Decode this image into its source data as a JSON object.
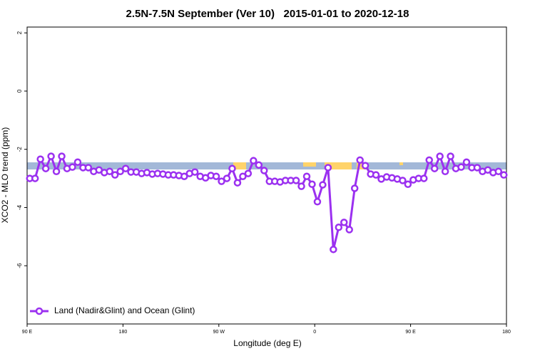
{
  "chart_data": {
    "type": "line",
    "title": "2.5N-7.5N September (Ver 10)   2015-01-01 to 2020-12-18",
    "x_label": "Longitude (deg E)",
    "y_label": "XCO2 - MLO trend (ppm)",
    "x": [
      92.5,
      97.5,
      102.5,
      107.5,
      112.5,
      117.5,
      122.5,
      127.5,
      132.5,
      137.5,
      142.5,
      147.5,
      152.5,
      157.5,
      162.5,
      167.5,
      172.5,
      177.5,
      182.5,
      187.5,
      192.5,
      197.5,
      202.5,
      207.5,
      212.5,
      217.5,
      222.5,
      227.5,
      232.5,
      237.5,
      242.5,
      247.5,
      252.5,
      257.5,
      262.5,
      267.5,
      272.5,
      277.5,
      282.5,
      287.5,
      292.5,
      297.5,
      302.5,
      307.5,
      312.5,
      317.5,
      322.5,
      327.5,
      332.5,
      337.5,
      342.5,
      347.5,
      352.5,
      357.5,
      362.5,
      367.5,
      372.5,
      377.5,
      382.5,
      387.5,
      392.5,
      397.5,
      402.5,
      407.5,
      412.5,
      417.5,
      422.5,
      427.5,
      432.5,
      437.5,
      442.5,
      447.5,
      452.5,
      457.5,
      462.5,
      467.5,
      472.5,
      477.5,
      482.5,
      487.5,
      492.5,
      497.5,
      502.5,
      507.5,
      512.5,
      517.5,
      522.5,
      527.5,
      532.5,
      537.5
    ],
    "series": [
      {
        "name": "Land (Nadir&Glint) and Ocean (Glint)",
        "color": "#9b30f0",
        "values": [
          -3.0,
          -3.0,
          -2.34,
          -2.66,
          -2.24,
          -2.76,
          -2.24,
          -2.66,
          -2.61,
          -2.44,
          -2.63,
          -2.63,
          -2.76,
          -2.71,
          -2.8,
          -2.76,
          -2.88,
          -2.76,
          -2.66,
          -2.78,
          -2.78,
          -2.83,
          -2.8,
          -2.85,
          -2.83,
          -2.85,
          -2.88,
          -2.88,
          -2.9,
          -2.93,
          -2.83,
          -2.78,
          -2.93,
          -2.98,
          -2.9,
          -2.93,
          -3.1,
          -3.0,
          -2.66,
          -3.15,
          -2.93,
          -2.83,
          -2.39,
          -2.54,
          -2.73,
          -3.1,
          -3.1,
          -3.12,
          -3.07,
          -3.07,
          -3.07,
          -3.27,
          -2.93,
          -3.2,
          -3.8,
          -3.22,
          -2.63,
          -5.44,
          -4.68,
          -4.51,
          -4.76,
          -3.34,
          -2.37,
          -2.56,
          -2.85,
          -2.88,
          -3.02,
          -2.95,
          -2.98,
          -3.02,
          -3.07,
          -3.2,
          -3.05,
          -3.0,
          -3.0,
          -2.37,
          -2.66,
          -2.24,
          -2.76,
          -2.24,
          -2.66,
          -2.61,
          -2.44,
          -2.63,
          -2.63,
          -2.76,
          -2.71,
          -2.8,
          -2.76,
          -2.88
        ]
      }
    ],
    "xlim": [
      90,
      540
    ],
    "xticks": [
      {
        "value": 90,
        "label": "90 E"
      },
      180,
      {
        "value": 270,
        "label": "90 W"
      },
      {
        "value": 360,
        "label": "0"
      },
      {
        "value": 450,
        "label": "90 E"
      },
      {
        "value": 540,
        "label": "180"
      }
    ],
    "ylim": [
      -8,
      2.2
    ],
    "yticks": [
      2,
      0,
      -2,
      -4,
      -6
    ],
    "legend": "bottom-left"
  }
}
